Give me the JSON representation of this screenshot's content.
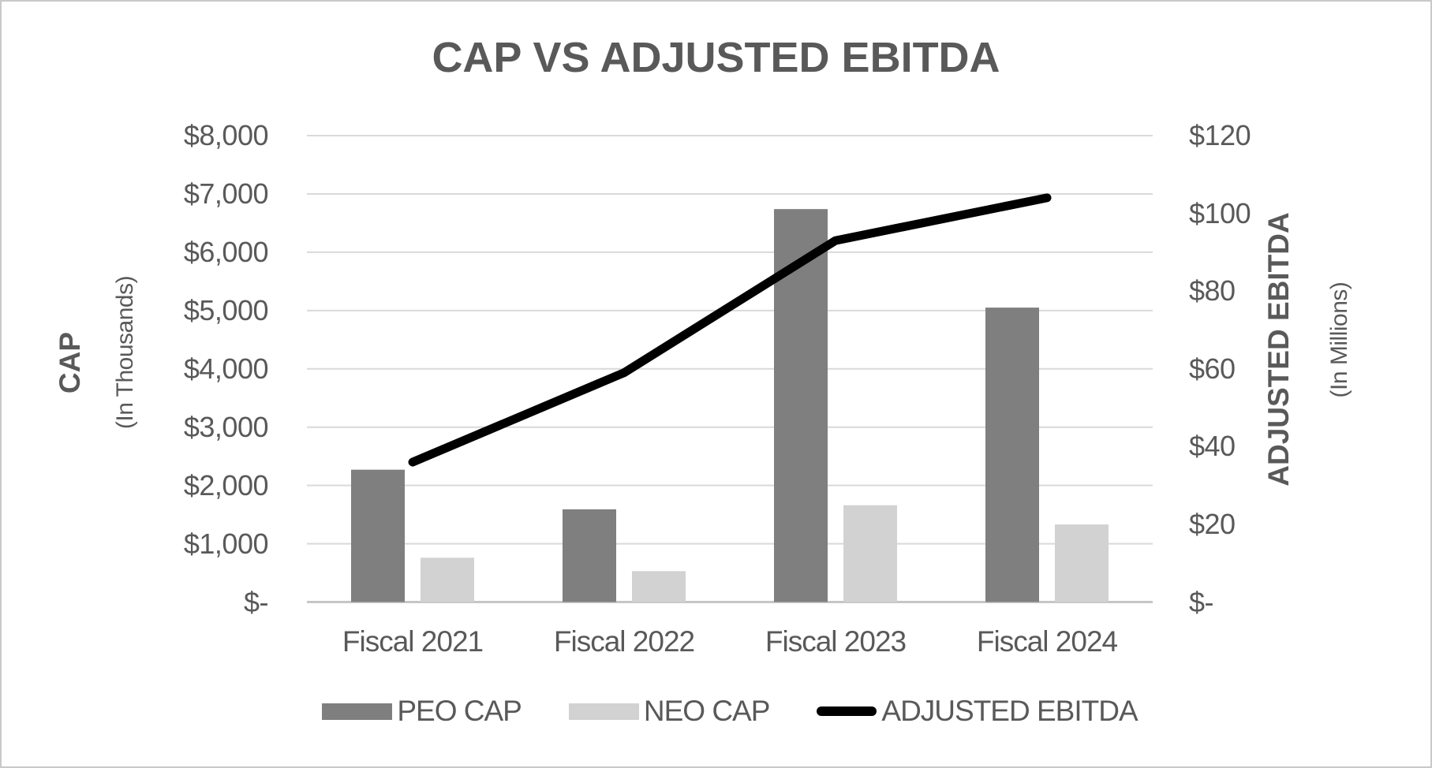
{
  "title": "CAP VS ADJUSTED EBITDA",
  "colors": {
    "peo_bar": "#7f7f7f",
    "neo_bar": "#d2d2d2",
    "ebitda_line": "#000000",
    "text": "#595959",
    "gridline": "#d9d9d9",
    "axis_baseline": "#c6c6c6",
    "frame_border": "#c9c9c9",
    "background": "#ffffff"
  },
  "chart_data": {
    "type": "combo-bar-line",
    "title": "CAP VS ADJUSTED EBITDA",
    "categories": [
      "Fiscal 2021",
      "Fiscal 2022",
      "Fiscal 2023",
      "Fiscal 2024"
    ],
    "series": [
      {
        "name": "PEO CAP",
        "type": "bar",
        "axis": "left",
        "color": "#7f7f7f",
        "values": [
          2270,
          1590,
          6740,
          5050
        ]
      },
      {
        "name": "NEO CAP",
        "type": "bar",
        "axis": "left",
        "color": "#d2d2d2",
        "values": [
          760,
          530,
          1660,
          1330
        ]
      },
      {
        "name": "ADJUSTED EBITDA",
        "type": "line",
        "axis": "right",
        "color": "#000000",
        "values": [
          36,
          59,
          93,
          104
        ]
      }
    ],
    "left_axis": {
      "title": "CAP",
      "subtitle": "(In Thousands)",
      "range": [
        0,
        8000
      ],
      "ticks": [
        "$8,000",
        "$7,000",
        "$6,000",
        "$5,000",
        "$4,000",
        "$3,000",
        "$2,000",
        "$1,000",
        "$-"
      ]
    },
    "right_axis": {
      "title": "ADJUSTED EBITDA",
      "subtitle": "(In Millions)",
      "range": [
        0,
        120
      ],
      "ticks": [
        "$120",
        "$100",
        "$80",
        "$60",
        "$40",
        "$20",
        "$-"
      ]
    },
    "grid": true,
    "legend_position": "bottom"
  }
}
